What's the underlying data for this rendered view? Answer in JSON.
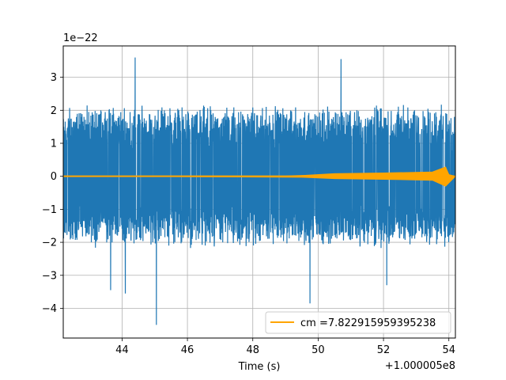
{
  "chart_data": {
    "type": "line",
    "title": "",
    "xlabel": "Time (s)",
    "ylabel": "",
    "y_multiplier_label": "1e−22",
    "x_offset_label": "+1.000005e8",
    "xlim": [
      42.2,
      54.2
    ],
    "ylim": [
      -4.9,
      3.95
    ],
    "x_ticks": [
      44,
      46,
      48,
      50,
      52,
      54
    ],
    "x_tick_labels": [
      "44",
      "46",
      "48",
      "50",
      "52",
      "54"
    ],
    "y_ticks": [
      -4,
      -3,
      -2,
      -1,
      0,
      1,
      2,
      3
    ],
    "y_tick_labels": [
      "−4",
      "−3",
      "−2",
      "−1",
      "0",
      "1",
      "2",
      "3"
    ],
    "grid": true,
    "legend_position": "lower-right",
    "series": [
      {
        "color": "#1f77b4",
        "description": "noise strain data",
        "envelope_typical_abs": 2.2,
        "peaks": [
          {
            "x": 44.4,
            "y": 3.6
          },
          {
            "x": 50.7,
            "y": 3.55
          },
          {
            "x": 45.05,
            "y": -4.5
          },
          {
            "x": 49.75,
            "y": -3.85
          },
          {
            "x": 43.65,
            "y": -3.45
          },
          {
            "x": 44.1,
            "y": -3.55
          },
          {
            "x": 52.1,
            "y": -3.3
          }
        ]
      },
      {
        "name": "cm =7.822915959395238",
        "color": "#ffa500",
        "description": "template waveform",
        "points": [
          {
            "x": 42.2,
            "y": 0.01
          },
          {
            "x": 49.0,
            "y": 0.01
          },
          {
            "x": 49.6,
            "y": 0.03
          },
          {
            "x": 50.5,
            "y": 0.08
          },
          {
            "x": 52.0,
            "y": 0.1
          },
          {
            "x": 53.5,
            "y": 0.13
          },
          {
            "x": 53.9,
            "y": 0.28
          },
          {
            "x": 54.0,
            "y": 0.05
          },
          {
            "x": 54.2,
            "y": 0.0
          }
        ],
        "negative_points": [
          {
            "x": 49.6,
            "y": -0.03
          },
          {
            "x": 50.5,
            "y": -0.07
          },
          {
            "x": 52.0,
            "y": -0.09
          },
          {
            "x": 53.5,
            "y": -0.12
          },
          {
            "x": 53.9,
            "y": -0.3
          }
        ]
      }
    ]
  },
  "colors": {
    "background": "#ffffff",
    "grid": "#b0b0b0",
    "axis": "#000000",
    "noise": "#1f77b4",
    "template": "#ffa500"
  }
}
